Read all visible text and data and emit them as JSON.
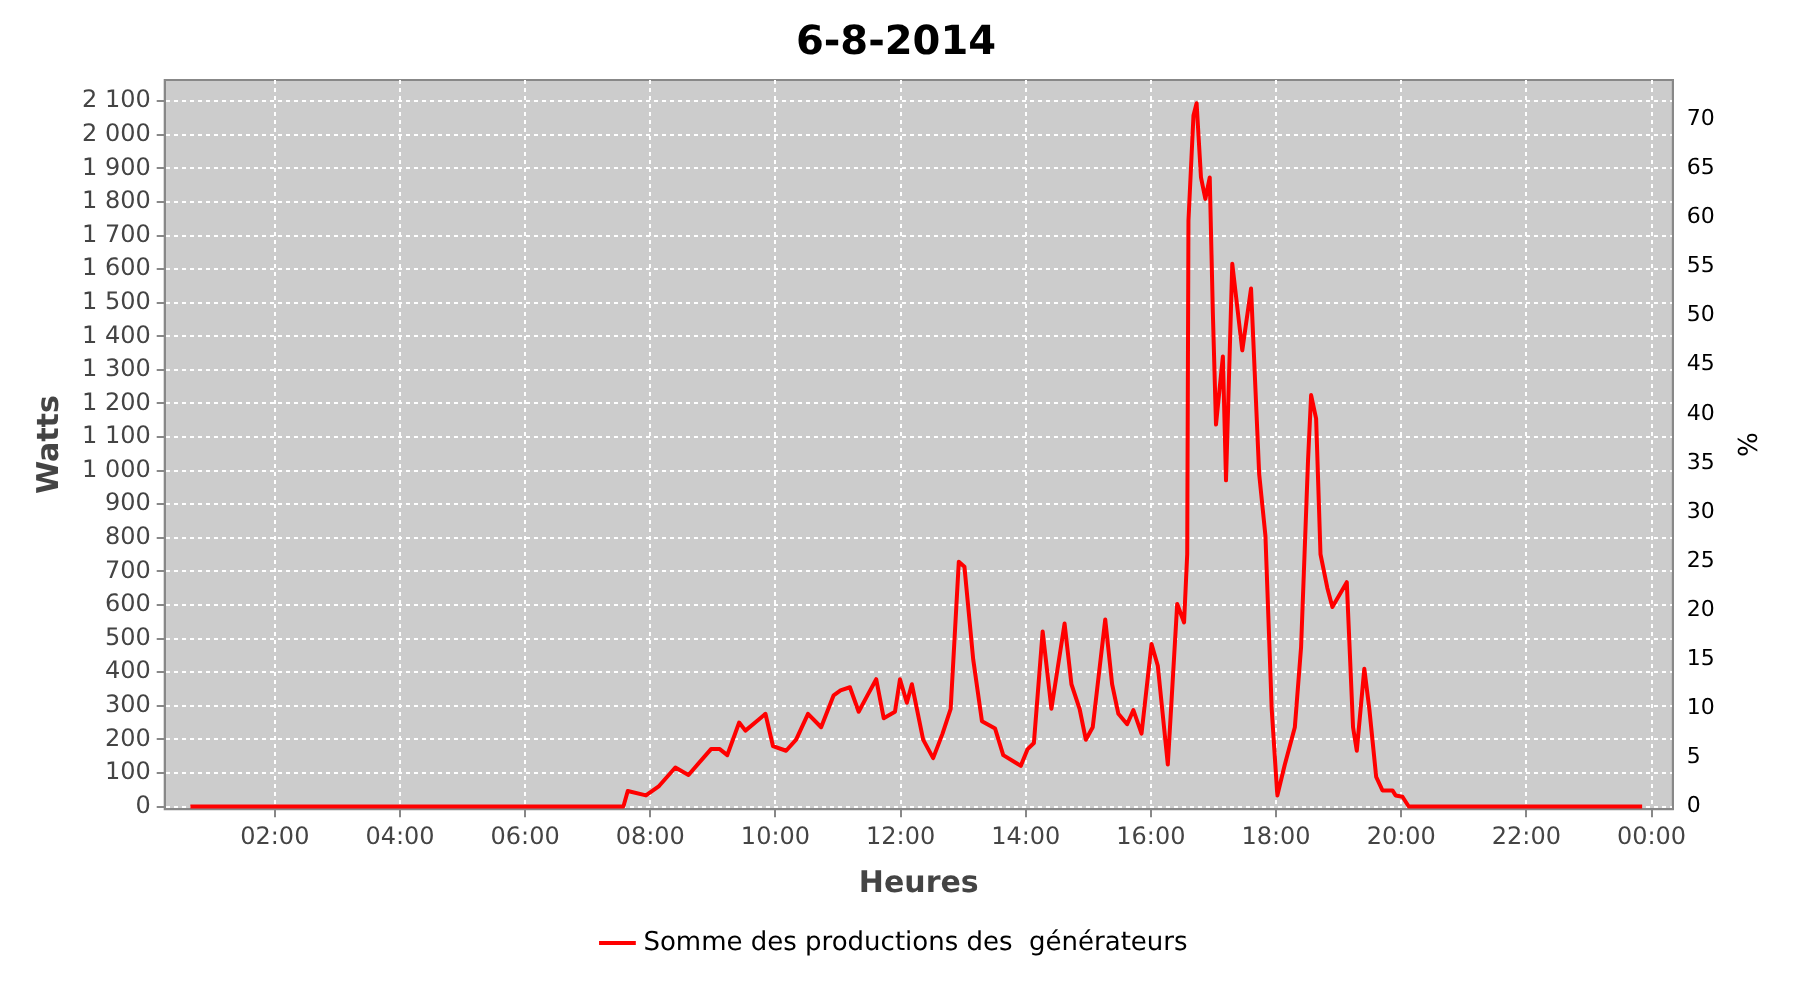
{
  "chart_data": {
    "type": "line",
    "title": "6-8-2014",
    "xlabel": "Heures",
    "ylabel": "Watts",
    "y2label": "%",
    "xlim": [
      0.24,
      24.34
    ],
    "xticks": [
      {
        "value": 2,
        "label": "02:00"
      },
      {
        "value": 4,
        "label": "04:00"
      },
      {
        "value": 6,
        "label": "06:00"
      },
      {
        "value": 8,
        "label": "08:00"
      },
      {
        "value": 10,
        "label": "10:00"
      },
      {
        "value": 12,
        "label": "12:00"
      },
      {
        "value": 14,
        "label": "14:00"
      },
      {
        "value": 16,
        "label": "16:00"
      },
      {
        "value": 18,
        "label": "18:00"
      },
      {
        "value": 20,
        "label": "20:00"
      },
      {
        "value": 22,
        "label": "22:00"
      },
      {
        "value": 24,
        "label": "00:00"
      }
    ],
    "ylim": [
      -8,
      2163
    ],
    "yticks": [
      0,
      100,
      200,
      300,
      400,
      500,
      600,
      700,
      800,
      900,
      {
        "value": 1000,
        "label": "1 000"
      },
      {
        "value": 1100,
        "label": "1 100"
      },
      {
        "value": 1200,
        "label": "1 200"
      },
      {
        "value": 1300,
        "label": "1 300"
      },
      {
        "value": 1400,
        "label": "1 400"
      },
      {
        "value": 1500,
        "label": "1 500"
      },
      {
        "value": 1600,
        "label": "1 600"
      },
      {
        "value": 1700,
        "label": "1 700"
      },
      {
        "value": 1800,
        "label": "1 800"
      },
      {
        "value": 1900,
        "label": "1 900"
      },
      {
        "value": 2000,
        "label": "2 000"
      },
      {
        "value": 2100,
        "label": "2 100"
      }
    ],
    "y2lim": [
      -0.27,
      74.0
    ],
    "y2ticks": [
      0,
      5,
      10,
      15,
      20,
      25,
      30,
      35,
      40,
      45,
      50,
      55,
      60,
      65,
      70
    ],
    "grid": true,
    "legend": "bottom",
    "marker": "none",
    "line_style": "solid",
    "series": [
      {
        "name": "Somme des productions des  générateurs",
        "color": "#ff0000",
        "x": [
          0.65,
          7.57,
          7.64,
          7.93,
          8.14,
          8.4,
          8.61,
          8.97,
          9.11,
          9.23,
          9.42,
          9.52,
          9.7,
          9.84,
          9.96,
          10.17,
          10.33,
          10.52,
          10.73,
          10.93,
          11.04,
          11.19,
          11.33,
          11.47,
          11.61,
          11.73,
          11.91,
          11.99,
          12.1,
          12.18,
          12.36,
          12.52,
          12.67,
          12.8,
          12.93,
          13.02,
          13.16,
          13.3,
          13.51,
          13.64,
          13.92,
          14.03,
          14.13,
          14.27,
          14.41,
          14.62,
          14.73,
          14.86,
          14.96,
          15.07,
          15.27,
          15.38,
          15.48,
          15.62,
          15.72,
          15.85,
          16.01,
          16.11,
          16.27,
          16.42,
          16.53,
          16.58,
          16.6,
          16.68,
          16.73,
          16.8,
          16.87,
          16.94,
          16.99,
          17.04,
          17.15,
          17.2,
          17.3,
          17.46,
          17.6,
          17.73,
          17.83,
          17.93,
          18.02,
          18.14,
          18.3,
          18.4,
          18.51,
          18.56,
          18.64,
          18.71,
          18.82,
          18.9,
          19.13,
          19.23,
          19.29,
          19.41,
          19.49,
          19.6,
          19.7,
          19.86,
          19.91,
          20.02,
          20.12,
          23.85
        ],
        "values": [
          0,
          0,
          46,
          33,
          61,
          116,
          94,
          171,
          171,
          153,
          250,
          226,
          254,
          276,
          180,
          166,
          199,
          276,
          236,
          331,
          346,
          355,
          282,
          331,
          379,
          263,
          282,
          379,
          309,
          364,
          199,
          144,
          217,
          291,
          729,
          714,
          438,
          254,
          232,
          153,
          121,
          171,
          189,
          521,
          291,
          545,
          364,
          291,
          199,
          236,
          557,
          364,
          276,
          245,
          287,
          217,
          484,
          419,
          125,
          603,
          548,
          751,
          1744,
          2057,
          2094,
          1873,
          1809,
          1873,
          1468,
          1137,
          1340,
          971,
          1616,
          1358,
          1542,
          990,
          806,
          291,
          33,
          125,
          236,
          475,
          1027,
          1225,
          1155,
          751,
          650,
          594,
          668,
          236,
          166,
          410,
          291,
          88,
          48,
          48,
          33,
          29,
          0,
          0
        ]
      }
    ]
  }
}
